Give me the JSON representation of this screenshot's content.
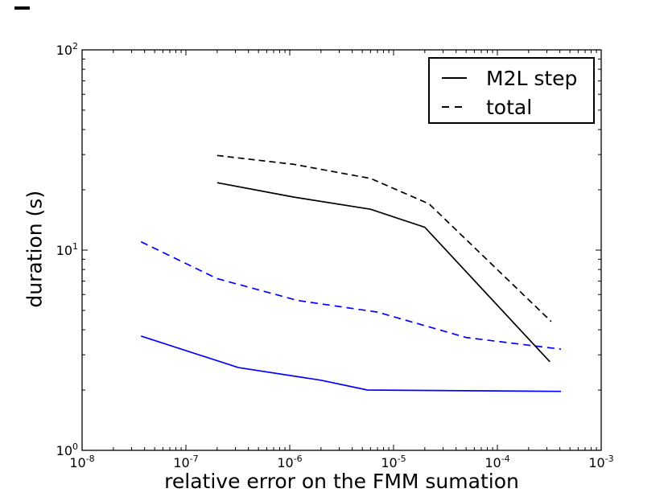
{
  "figure": {
    "background": "#ffffff",
    "axis_color": "#000000"
  },
  "legend": {
    "position": "upper right",
    "entries": [
      {
        "label": "M2L step",
        "line_style": "solid",
        "color": "#000000"
      },
      {
        "label": "total",
        "line_style": "dashed",
        "color": "#000000"
      }
    ]
  },
  "chart_data": {
    "type": "line",
    "title": "",
    "xlabel": "relative error on the FMM sumation",
    "ylabel": "duration (s)",
    "x_scale": "log",
    "y_scale": "log",
    "xlim": [
      1e-08,
      0.001
    ],
    "ylim": [
      1,
      100
    ],
    "x_tick_exponents": [
      -8,
      -7,
      -6,
      -5,
      -4,
      -3
    ],
    "y_tick_exponents": [
      0,
      1,
      2
    ],
    "grid": false,
    "legend_position": "upper right",
    "colors": {
      "series_black": "#000000",
      "series_blue": "#0000ff"
    },
    "series": [
      {
        "name": "total (blue)",
        "legend_label": "total",
        "color": "#0000ff",
        "line_style": "dashed",
        "points": [
          [
            3.7e-08,
            11.0
          ],
          [
            2e-07,
            7.2
          ],
          [
            1.2e-06,
            5.6
          ],
          [
            7e-06,
            4.9
          ],
          [
            5e-05,
            3.66
          ],
          [
            0.00041,
            3.2
          ]
        ]
      },
      {
        "name": "M2L step (blue)",
        "legend_label": "M2L step",
        "color": "#0000ff",
        "line_style": "solid",
        "points": [
          [
            3.7e-08,
            3.72
          ],
          [
            3.2e-07,
            2.59
          ],
          [
            2e-06,
            2.24
          ],
          [
            5.6e-06,
            2.0
          ],
          [
            0.00041,
            1.97
          ]
        ]
      },
      {
        "name": "total (black)",
        "legend_label": "total",
        "color": "#000000",
        "line_style": "dashed",
        "points": [
          [
            2e-07,
            29.7
          ],
          [
            1.1e-06,
            26.8
          ],
          [
            6e-06,
            22.8
          ],
          [
            2.2e-05,
            17.0
          ],
          [
            0.00033,
            4.4
          ]
        ]
      },
      {
        "name": "M2L step (black)",
        "legend_label": "M2L step",
        "color": "#000000",
        "line_style": "solid",
        "points": [
          [
            2e-07,
            21.7
          ],
          [
            1.1e-06,
            18.4
          ],
          [
            6e-06,
            16.0
          ],
          [
            2e-05,
            13.0
          ],
          [
            0.00032,
            2.77
          ]
        ]
      }
    ]
  }
}
